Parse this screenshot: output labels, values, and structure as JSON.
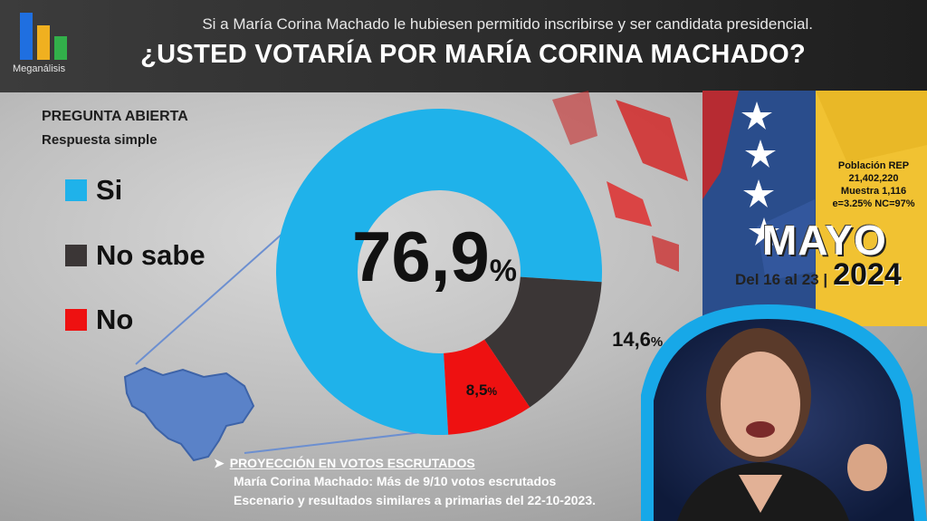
{
  "header": {
    "brand": "Meganálisis",
    "subtitle": "Si a María Corina Machado le hubiesen permitido inscribirse y ser candidata presidencial.",
    "title": "¿USTED VOTARÍA POR MARÍA CORINA MACHADO?"
  },
  "question": {
    "type": "PREGUNTA ABIERTA",
    "response": "Respuesta simple"
  },
  "legend": [
    {
      "label": "Si",
      "color": "#1fb2ea"
    },
    {
      "label": "No sabe",
      "color": "#3b3636"
    },
    {
      "label": "No",
      "color": "#ee1111"
    }
  ],
  "chart_data": {
    "type": "pie",
    "variant": "donut",
    "slices": [
      {
        "name": "Si",
        "value": 76.9,
        "label": "76,9",
        "color": "#1fb2ea"
      },
      {
        "name": "No sabe",
        "value": 14.6,
        "label": "14,6",
        "color": "#3b3636"
      },
      {
        "name": "No",
        "value": 8.5,
        "label": "8,5",
        "color": "#ee1111"
      }
    ],
    "unit": "%",
    "legend_position": "left"
  },
  "survey": {
    "population": "Población REP",
    "population_value": "21,402,220",
    "sample": "Muestra 1,116",
    "error": "e=3.25%  NC=97%"
  },
  "period": {
    "month": "MAYO",
    "range": "Del 16 al 23 |",
    "year": "2024"
  },
  "projection": {
    "title": "PROYECCIÓN EN VOTOS ESCRUTADOS",
    "line1": "María Corina Machado: Más de 9/10 votos escrutados",
    "line2": "Escenario y resultados similares a primarias del 22-10-2023."
  },
  "icons": {
    "bullet": "chevron-right-icon",
    "logo": "bar-chart-logo-icon"
  }
}
